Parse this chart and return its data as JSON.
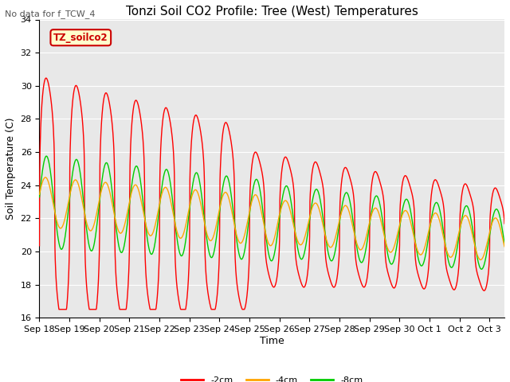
{
  "title": "Tonzi Soil CO2 Profile: Tree (West) Temperatures",
  "subtitle": "No data for f_TCW_4",
  "ylabel": "Soil Temperature (C)",
  "xlabel": "Time",
  "legend_label": "TZ_soilco2",
  "ylim": [
    16,
    34
  ],
  "yticks": [
    16,
    18,
    20,
    22,
    24,
    26,
    28,
    30,
    32,
    34
  ],
  "xtick_labels": [
    "Sep 18",
    "Sep 19",
    "Sep 20",
    "Sep 21",
    "Sep 22",
    "Sep 23",
    "Sep 24",
    "Sep 25",
    "Sep 26",
    "Sep 27",
    "Sep 28",
    "Sep 29",
    "Sep 30",
    "Oct 1",
    "Oct 2",
    "Oct 3"
  ],
  "series_labels": [
    "-2cm",
    "-4cm",
    "-8cm"
  ],
  "series_colors": [
    "#ff0000",
    "#ffa500",
    "#00cc00"
  ],
  "line_width": 1.0,
  "background_color": "#ffffff",
  "plot_bg_color": "#e8e8e8",
  "grid_color": "#ffffff",
  "title_fontsize": 11,
  "axis_fontsize": 9,
  "tick_fontsize": 8,
  "legend_box_color": "#ffffcc",
  "legend_box_edge": "#cc0000"
}
